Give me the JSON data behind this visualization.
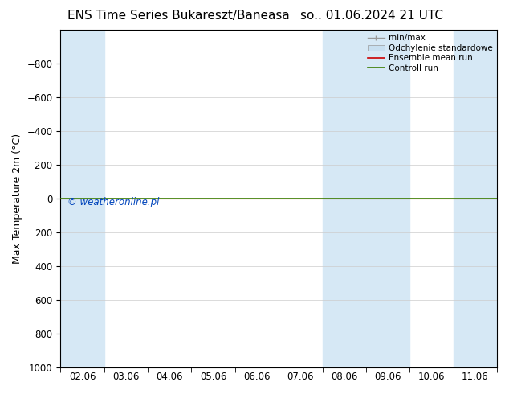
{
  "title_left": "ENS Time Series Bukareszt/Baneasa",
  "title_right": "so.. 01.06.2024 21 UTC",
  "ylabel": "Max Temperature 2m (°C)",
  "ylim_bottom": 1000,
  "ylim_top": -1000,
  "yticks": [
    -800,
    -600,
    -400,
    -200,
    0,
    200,
    400,
    600,
    800,
    1000
  ],
  "xlim": [
    0,
    10
  ],
  "xtick_labels": [
    "02.06",
    "03.06",
    "04.06",
    "05.06",
    "06.06",
    "07.06",
    "08.06",
    "09.06",
    "10.06",
    "11.06"
  ],
  "shaded_columns": [
    0,
    6,
    7,
    9
  ],
  "shaded_color": "#d6e8f5",
  "control_run_y": 0,
  "control_run_color": "#3a7d00",
  "ensemble_mean_color": "#cc0000",
  "watermark": "© weatheronline.pl",
  "watermark_color": "#0044bb",
  "legend_labels": [
    "min/max",
    "Odchylenie standardowe",
    "Ensemble mean run",
    "Controll run"
  ],
  "legend_line_color": "#999999",
  "legend_patch_color": "#c8dff0",
  "legend_patch_edge": "#999999",
  "legend_ens_color": "#cc0000",
  "legend_ctrl_color": "#3a7d00",
  "background_color": "#ffffff",
  "plot_bg_color": "#ffffff",
  "title_fontsize": 11,
  "axis_fontsize": 9,
  "tick_fontsize": 8.5,
  "grid_color": "#cccccc"
}
